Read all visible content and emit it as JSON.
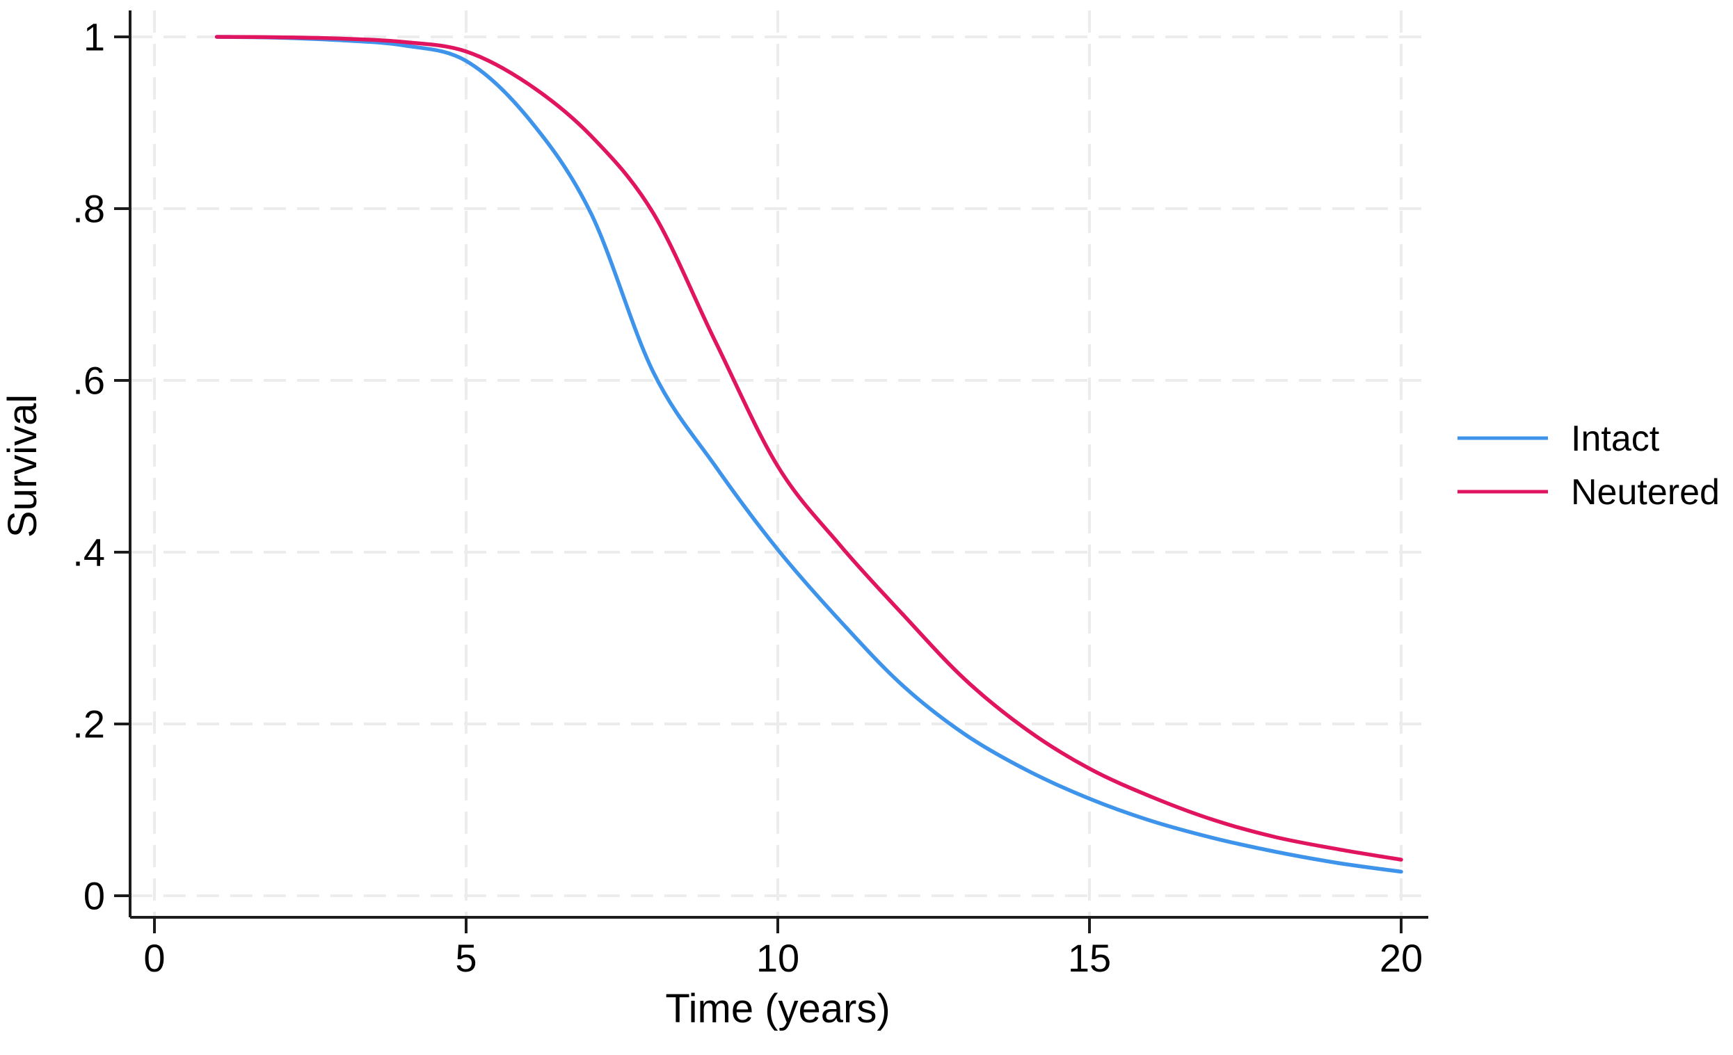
{
  "figure": {
    "background": "#ffffff",
    "axis_color": "#1c1c1c",
    "grid_color": "#ececec",
    "text_color": "#000000"
  },
  "chart_data": {
    "type": "line",
    "title": "",
    "xlabel": "Time (years)",
    "ylabel": "Survival",
    "xlim": [
      0,
      20
    ],
    "ylim": [
      0,
      1
    ],
    "grid": "dashed-both",
    "legend_position": "right-outside",
    "x_ticks": [
      {
        "value": 0,
        "label": "0"
      },
      {
        "value": 5,
        "label": "5"
      },
      {
        "value": 10,
        "label": "10"
      },
      {
        "value": 15,
        "label": "15"
      },
      {
        "value": 20,
        "label": "20"
      }
    ],
    "y_ticks": [
      {
        "value": 0,
        "label": "0"
      },
      {
        "value": 0.2,
        "label": ".2"
      },
      {
        "value": 0.4,
        "label": ".4"
      },
      {
        "value": 0.6,
        "label": ".6"
      },
      {
        "value": 0.8,
        "label": ".8"
      },
      {
        "value": 1,
        "label": "1"
      }
    ],
    "x": [
      1,
      2,
      3,
      4,
      5,
      6,
      7,
      8,
      9,
      10,
      11,
      12,
      13,
      14,
      15,
      16,
      17,
      18,
      19,
      20
    ],
    "series": [
      {
        "name": "Intact",
        "color": "#3E94EB",
        "values": [
          1.0,
          0.999,
          0.996,
          0.99,
          0.972,
          0.905,
          0.795,
          0.61,
          0.5,
          0.403,
          0.32,
          0.245,
          0.188,
          0.146,
          0.113,
          0.087,
          0.067,
          0.051,
          0.038,
          0.028
        ]
      },
      {
        "name": "Neutered",
        "color": "#E0145F",
        "values": [
          1.0,
          0.9995,
          0.998,
          0.994,
          0.983,
          0.945,
          0.885,
          0.795,
          0.645,
          0.5,
          0.408,
          0.328,
          0.252,
          0.193,
          0.148,
          0.115,
          0.088,
          0.068,
          0.054,
          0.042
        ]
      }
    ]
  }
}
